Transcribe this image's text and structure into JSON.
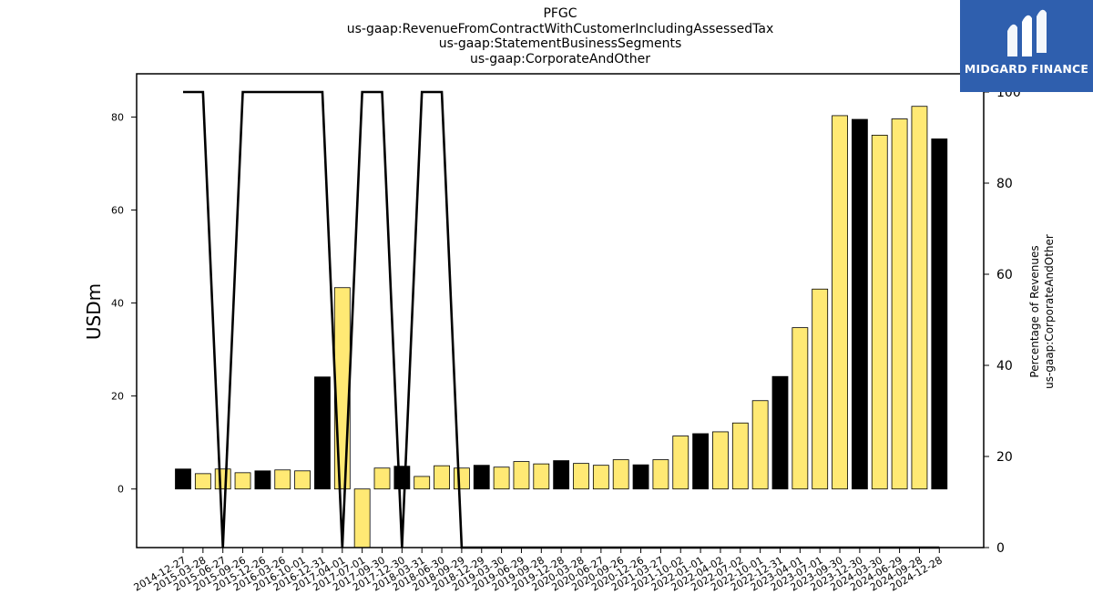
{
  "chart_data": {
    "type": "bar",
    "title_lines": [
      "PFGC",
      "us-gaap:RevenueFromContractWithCustomerIncludingAssessedTax",
      "us-gaap:StatementBusinessSegments",
      "us-gaap:CorporateAndOther"
    ],
    "ylabel": "USDm",
    "y2label_lines": [
      "Percentage of Revenues",
      "us-gaap:CorporateAndOther"
    ],
    "ylim": [
      -12.6,
      89.3
    ],
    "y2lim": [
      0,
      104
    ],
    "yticks": [
      0,
      20,
      40,
      60,
      80
    ],
    "y2ticks": [
      0,
      20,
      40,
      60,
      80,
      100
    ],
    "categories": [
      "2014-12-27",
      "2015-03-28",
      "2015-06-27",
      "2015-09-26",
      "2015-12-26",
      "2016-03-26",
      "2016-10-01",
      "2016-12-31",
      "2017-04-01",
      "2017-07-01",
      "2017-09-30",
      "2017-12-30",
      "2018-03-31",
      "2018-06-30",
      "2018-09-29",
      "2018-12-29",
      "2019-03-30",
      "2019-06-29",
      "2019-09-28",
      "2019-12-28",
      "2020-03-28",
      "2020-06-27",
      "2020-09-26",
      "2020-12-26",
      "2021-03-27",
      "2021-10-02",
      "2022-01-01",
      "2022-04-02",
      "2022-07-02",
      "2022-10-01",
      "2022-12-31",
      "2023-04-01",
      "2023-07-01",
      "2023-09-30",
      "2023-12-30",
      "2024-03-30",
      "2024-06-29",
      "2024-09-28",
      "2024-12-28"
    ],
    "series": [
      {
        "name": "",
        "type": "bar",
        "values": [
          4.3,
          3.3,
          4.3,
          3.5,
          3.9,
          4.1,
          3.9,
          24.1,
          43.3,
          -12.6,
          4.5,
          4.9,
          2.7,
          5.0,
          4.5,
          5.1,
          4.7,
          5.9,
          5.4,
          6.1,
          5.5,
          5.1,
          6.3,
          5.2,
          6.3,
          11.4,
          11.9,
          12.3,
          14.2,
          19.0,
          24.2,
          34.7,
          43.0,
          80.3,
          79.5,
          76.1,
          79.6,
          82.3,
          75.3
        ],
        "colors": [
          "#000000",
          "#ffe974",
          "#ffe974",
          "#ffe974",
          "#000000",
          "#ffe974",
          "#ffe974",
          "#000000",
          "#ffe974",
          "#ffe974",
          "#ffe974",
          "#000000",
          "#ffe974",
          "#ffe974",
          "#ffe974",
          "#000000",
          "#ffe974",
          "#ffe974",
          "#ffe974",
          "#000000",
          "#ffe974",
          "#ffe974",
          "#ffe974",
          "#000000",
          "#ffe974",
          "#ffe974",
          "#000000",
          "#ffe974",
          "#ffe974",
          "#ffe974",
          "#000000",
          "#ffe974",
          "#ffe974",
          "#ffe974",
          "#000000",
          "#ffe974",
          "#ffe974",
          "#ffe974",
          "#000000"
        ]
      },
      {
        "name": "",
        "type": "line",
        "axis": "right",
        "color": "#000000",
        "values": [
          100,
          100,
          0,
          100,
          100,
          100,
          100,
          100,
          0,
          100,
          100,
          0,
          100,
          100,
          0,
          0,
          0,
          0,
          0,
          0,
          0,
          0,
          0,
          0,
          0,
          0,
          0,
          0,
          0,
          0,
          0,
          0,
          0,
          0,
          0,
          0,
          0,
          0,
          0
        ]
      }
    ],
    "grid": false,
    "legend": "none"
  },
  "logo": {
    "text": "MIDGARD FINANCE",
    "bg_color": "#2f5fae"
  }
}
